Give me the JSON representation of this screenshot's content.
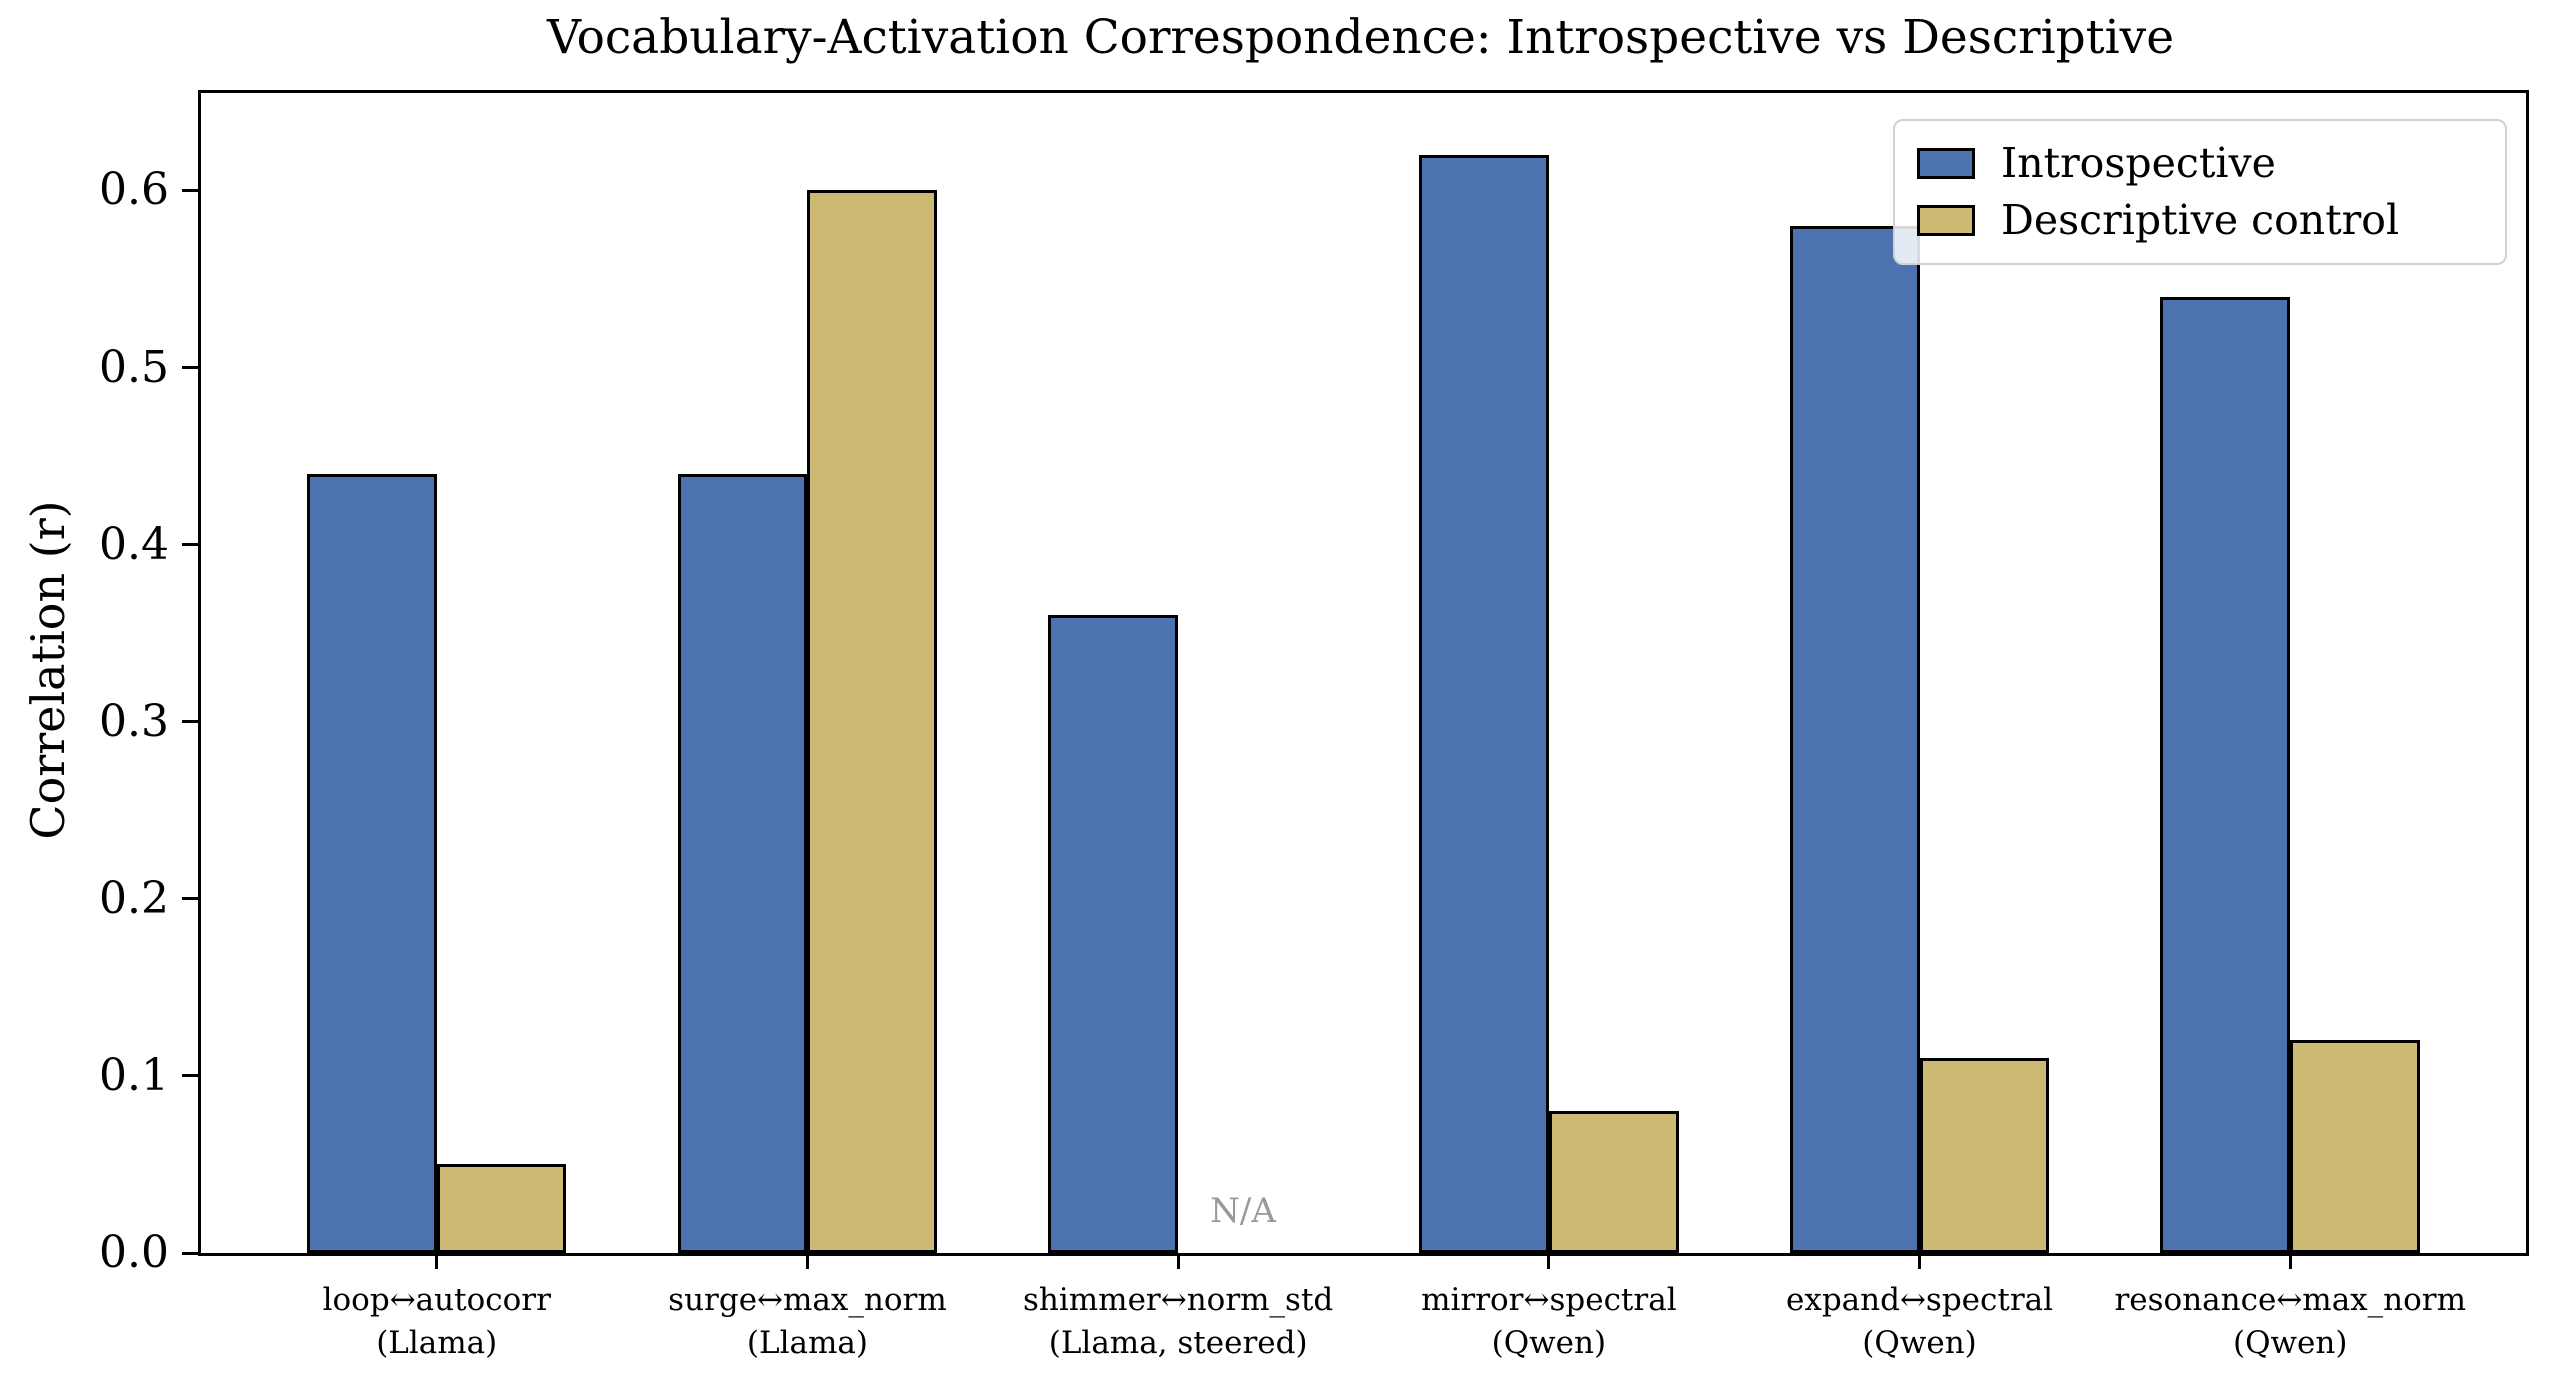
{
  "chart_data": {
    "type": "bar",
    "title": "Vocabulary-Activation Correspondence: Introspective vs Descriptive",
    "xlabel": "",
    "ylabel": "Correlation (r)",
    "ylim": [
      0,
      0.655
    ],
    "yticks": [
      0.0,
      0.1,
      0.2,
      0.3,
      0.4,
      0.5,
      0.6
    ],
    "grid": false,
    "legend_position": "upper right",
    "categories": [
      {
        "label": "loop↔autocorr",
        "sub": "(Llama)"
      },
      {
        "label": "surge↔max_norm",
        "sub": "(Llama)"
      },
      {
        "label": "shimmer↔norm_std",
        "sub": "(Llama, steered)"
      },
      {
        "label": "mirror↔spectral",
        "sub": "(Qwen)"
      },
      {
        "label": "expand↔spectral",
        "sub": "(Qwen)"
      },
      {
        "label": "resonance↔max_norm",
        "sub": "(Qwen)"
      }
    ],
    "series": [
      {
        "name": "Introspective",
        "color": "#4C72B0",
        "values": [
          0.44,
          0.44,
          0.36,
          0.62,
          0.58,
          0.54
        ]
      },
      {
        "name": "Descriptive control",
        "color": "#CCB974",
        "values": [
          0.05,
          0.6,
          null,
          0.08,
          0.11,
          0.12
        ]
      }
    ],
    "missing_value_label": "N/A",
    "missing_label_color": "#999999",
    "bar_edge_color": "#000000",
    "bar_width_units": 0.35,
    "x_unit_span": 6.272,
    "x_first_center_units": 0.636
  }
}
